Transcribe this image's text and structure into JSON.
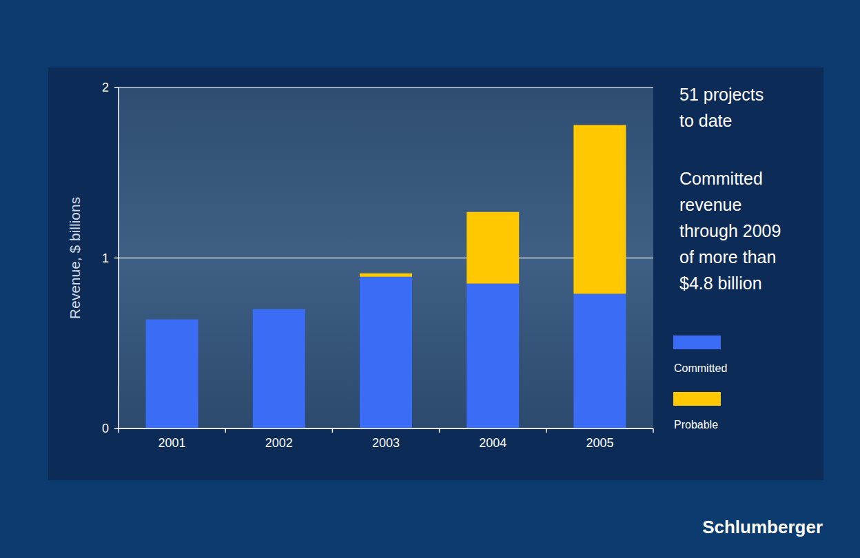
{
  "chart_data": {
    "type": "bar",
    "stacked": true,
    "categories": [
      "2001",
      "2002",
      "2003",
      "2004",
      "2005"
    ],
    "series": [
      {
        "name": "Committed",
        "color": "#3b6cf5",
        "values": [
          0.64,
          0.7,
          0.89,
          0.85,
          0.79
        ]
      },
      {
        "name": "Probable",
        "color": "#ffc800",
        "values": [
          0,
          0,
          0.02,
          0.42,
          0.99
        ]
      }
    ],
    "y_label": "Revenue, $ billions",
    "ylim": [
      0,
      2
    ],
    "yticks": [
      0,
      1,
      2
    ],
    "grid": true,
    "legend": "right",
    "annotations": [
      "51 projects\nto date",
      "Committed\nrevenue\nthrough 2009\nof more than\n$4.8 billion"
    ],
    "source": "Schlumberger"
  }
}
